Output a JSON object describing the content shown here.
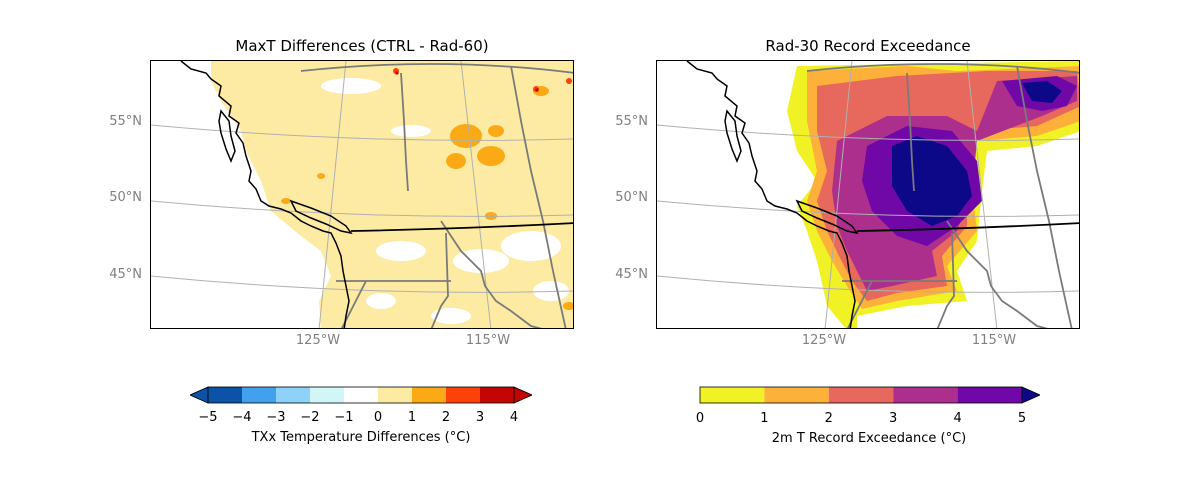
{
  "left_map": {
    "title": "MaxT Differences (CTRL - Rad-60)",
    "lat_labels": [
      "55°N",
      "50°N",
      "45°N"
    ],
    "lon_labels": [
      "125°W",
      "115°W"
    ],
    "colorbar": {
      "label": "TXx Temperature Differences (°C)",
      "ticks": [
        "−5",
        "−4",
        "−3",
        "−2",
        "−1",
        "0",
        "1",
        "2",
        "3",
        "4"
      ],
      "colors": [
        "#0c52a6",
        "#42a0ec",
        "#8ed2fb",
        "#d2f6f8",
        "#ffffff",
        "#fdeba3",
        "#fca916",
        "#fd4109",
        "#c40303"
      ],
      "extend": "both"
    }
  },
  "right_map": {
    "title": "Rad-30 Record Exceedance",
    "lat_labels": [
      "55°N",
      "50°N",
      "45°N"
    ],
    "lon_labels": [
      "125°W",
      "115°W"
    ],
    "colorbar": {
      "label": "2m T Record Exceedance (°C)",
      "ticks": [
        "0",
        "1",
        "2",
        "3",
        "4",
        "5"
      ],
      "colors": [
        "#f0f226",
        "#fdb03a",
        "#e7685c",
        "#ad2f8d",
        "#6f08a6"
      ],
      "extend": "max",
      "extend_color": "#0d0887"
    }
  }
}
